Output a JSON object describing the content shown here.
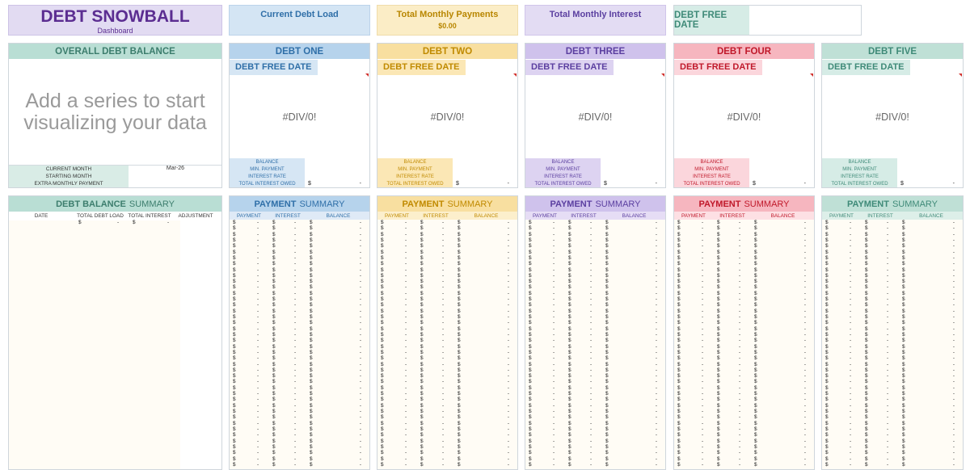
{
  "title": "DEBT SNOWBALL",
  "subtitle": "Dashboard",
  "top_cards": {
    "current_debt_load": "Current Debt Load",
    "total_monthly_payments": "Total Monthly Payments",
    "total_monthly_payments_value": "$0.00",
    "total_monthly_interest": "Total Monthly Interest",
    "debt_free_date": "DEBT FREE DATE"
  },
  "overall": {
    "header": "OVERALL DEBT BALANCE",
    "chart_placeholder": "Add a series to start visualizing your data",
    "current_month_label": "CURRENT MONTH",
    "current_month_value": "Mar-26",
    "starting_month_label": "STARTING MONTH",
    "extra_payment_label": "EXTRA MONTHLY PAYMENT"
  },
  "debt_labels": {
    "free_date": "DEBT FREE DATE",
    "div0": "#DIV/0!",
    "balance": "BALANCE",
    "min_payment": "MIN. PAYMENT",
    "interest_rate": "INTEREST RATE",
    "total_interest": "TOTAL INTEREST OWED",
    "dollar": "$",
    "dash": "-"
  },
  "debts": [
    {
      "name": "DEBT ONE",
      "accent": "#2f6fa8",
      "header_bg": "#b6d3ec",
      "label_bg": "#d6e6f4",
      "col_bg": "#dfeaf6"
    },
    {
      "name": "DEBT TWO",
      "accent": "#c08a00",
      "header_bg": "#f8dfa0",
      "label_bg": "#fbe7b5",
      "col_bg": "#fcefcc"
    },
    {
      "name": "DEBT THREE",
      "accent": "#5b3fa0",
      "header_bg": "#cfc2ec",
      "label_bg": "#ddd3f1",
      "col_bg": "#e6ddf5"
    },
    {
      "name": "DEBT FOUR",
      "accent": "#c0182a",
      "header_bg": "#f6b6bf",
      "label_bg": "#fbd6dc",
      "col_bg": "#fde0e4"
    },
    {
      "name": "DEBT FIVE",
      "accent": "#3f8a78",
      "header_bg": "#bfe0d6",
      "label_bg": "#d6ece6",
      "col_bg": "#ddefe9"
    }
  ],
  "debt_summary": {
    "title": "DEBT BALANCE SUMMARY",
    "title_bold": "DEBT BALANCE",
    "title_rest": "SUMMARY",
    "columns": [
      "DATE",
      "TOTAL DEBT LOAD",
      "TOTAL INTEREST",
      "ADJUSTMENT"
    ]
  },
  "payment_summary": {
    "title_bold": "PAYMENT",
    "title_rest": "SUMMARY",
    "columns": [
      "PAYMENT",
      "INTEREST",
      "BALANCE"
    ]
  },
  "colors": {
    "title_purple": "#5b2d91",
    "overall_header_bg": "#b9ded4",
    "overall_header_text": "#3c7d6d",
    "row_bg": "#fffcf5"
  }
}
